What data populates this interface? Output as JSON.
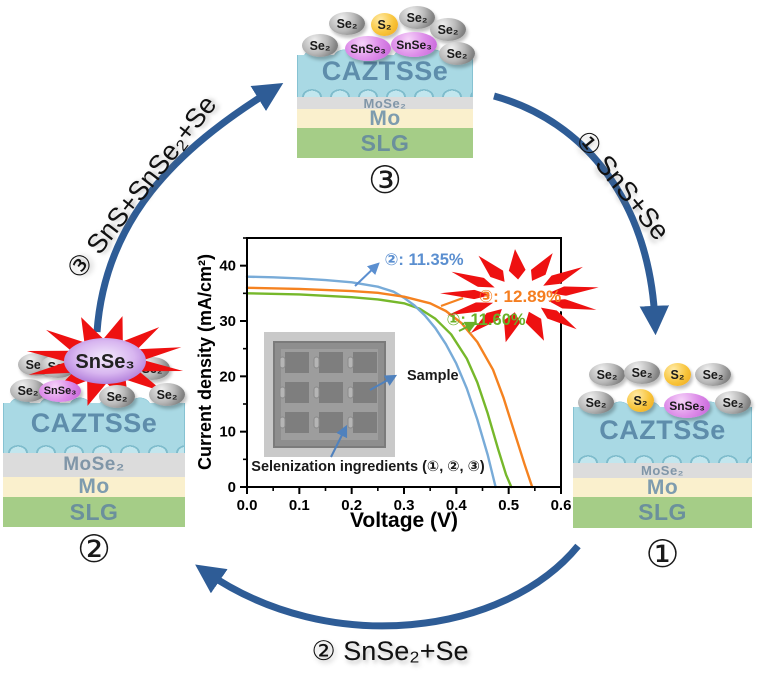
{
  "palette": {
    "cycle_arrow": "#2e5c96",
    "burst_red": "#ee1111",
    "absorber_blue": "#a9d9e4",
    "mo_cream": "#faf0cd",
    "slg_green": "#a5cd87",
    "curve_blue": "#78abd8",
    "curve_green": "#76b82b",
    "curve_orange": "#f58220",
    "annotation_arrow_blue": "#4f81bd"
  },
  "arrows": {
    "step1_label": "① SnS+Se",
    "step2_label": "② SnSe₂+Se",
    "step3_label": "③ SnS+SnSe₂+Se"
  },
  "stacks": {
    "top": {
      "number": "③",
      "layers": {
        "absorber": "CAZTSSe",
        "interface": "MoSe₂",
        "electrode": "Mo",
        "substrate": "SLG"
      },
      "particles": [
        {
          "type": "se",
          "label": "Se₂"
        },
        {
          "type": "s",
          "label": "S₂"
        },
        {
          "type": "se",
          "label": "Se₂"
        },
        {
          "type": "se",
          "label": "Se₂"
        },
        {
          "type": "se",
          "label": "Se₂"
        },
        {
          "type": "snse",
          "label": "SnSe₃"
        },
        {
          "type": "snse",
          "label": "SnSe₃"
        },
        {
          "type": "se",
          "label": "Se₂"
        }
      ]
    },
    "right": {
      "number": "①",
      "layers": {
        "absorber": "CAZTSSe",
        "interface": "MoSe₂",
        "electrode": "Mo",
        "substrate": "SLG"
      },
      "particles": [
        {
          "type": "se",
          "label": "Se₂"
        },
        {
          "type": "se",
          "label": "Se₂"
        },
        {
          "type": "s",
          "label": "S₂"
        },
        {
          "type": "se",
          "label": "Se₂"
        },
        {
          "type": "se",
          "label": "Se₂"
        },
        {
          "type": "s",
          "label": "S₂"
        },
        {
          "type": "snse",
          "label": "SnSe₃"
        },
        {
          "type": "se",
          "label": "Se₂"
        }
      ]
    },
    "left": {
      "number": "②",
      "burst_label": "SnSe₃",
      "layers": {
        "absorber": "CAZTSSe",
        "interface": "MoSe₂",
        "electrode": "Mo",
        "substrate": "SLG"
      },
      "particles": [
        {
          "type": "se",
          "label": "Se₂"
        },
        {
          "type": "se",
          "label": "Se₂"
        },
        {
          "type": "se",
          "label": "Se₂"
        },
        {
          "type": "se",
          "label": "Se₂"
        },
        {
          "type": "snse",
          "label": "SnSe₃"
        },
        {
          "type": "se",
          "label": "Se₂"
        },
        {
          "type": "se",
          "label": "Se₂"
        }
      ]
    }
  },
  "chart_data": {
    "type": "line",
    "title": "",
    "xlabel": "Voltage (V)",
    "ylabel": "Current density (mA/cm²)",
    "xlim": [
      0,
      0.6
    ],
    "ylim": [
      0,
      45
    ],
    "x_ticks": [
      "0.0",
      "0.1",
      "0.2",
      "0.3",
      "0.4",
      "0.5",
      "0.6"
    ],
    "y_ticks": [
      "0",
      "10",
      "20",
      "30",
      "40"
    ],
    "grid": false,
    "legend_position": "inline-annotations",
    "series": [
      {
        "id": "①",
        "annotation": "①: 11.60%",
        "efficiency_percent": 11.6,
        "color": "#76b82b",
        "points": [
          [
            0,
            35
          ],
          [
            0.1,
            34.8
          ],
          [
            0.2,
            34.3
          ],
          [
            0.25,
            33.9
          ],
          [
            0.3,
            33.2
          ],
          [
            0.33,
            32.2
          ],
          [
            0.36,
            30.4
          ],
          [
            0.39,
            27.6
          ],
          [
            0.42,
            23.2
          ],
          [
            0.44,
            18.9
          ],
          [
            0.46,
            13.3
          ],
          [
            0.48,
            6.8
          ],
          [
            0.495,
            2.2
          ],
          [
            0.505,
            0
          ]
        ]
      },
      {
        "id": "②",
        "annotation": "②: 11.35%",
        "efficiency_percent": 11.35,
        "color": "#78abd8",
        "points": [
          [
            0,
            38
          ],
          [
            0.05,
            37.9
          ],
          [
            0.1,
            37.7
          ],
          [
            0.15,
            37.4
          ],
          [
            0.2,
            37
          ],
          [
            0.25,
            36.2
          ],
          [
            0.28,
            35.3
          ],
          [
            0.3,
            34.2
          ],
          [
            0.32,
            32.8
          ],
          [
            0.34,
            31
          ],
          [
            0.36,
            28.7
          ],
          [
            0.38,
            25.8
          ],
          [
            0.4,
            22.3
          ],
          [
            0.42,
            17.8
          ],
          [
            0.44,
            12.2
          ],
          [
            0.46,
            5.8
          ],
          [
            0.475,
            0
          ]
        ]
      },
      {
        "id": "③",
        "annotation": "③: 12.89%",
        "efficiency_percent": 12.89,
        "color": "#f58220",
        "points": [
          [
            0,
            36
          ],
          [
            0.1,
            35.8
          ],
          [
            0.2,
            35.4
          ],
          [
            0.25,
            35.1
          ],
          [
            0.3,
            34.4
          ],
          [
            0.35,
            33.2
          ],
          [
            0.38,
            31.8
          ],
          [
            0.41,
            29.6
          ],
          [
            0.44,
            26.2
          ],
          [
            0.47,
            21.2
          ],
          [
            0.49,
            16.2
          ],
          [
            0.51,
            10.2
          ],
          [
            0.53,
            4.2
          ],
          [
            0.545,
            0
          ]
        ]
      }
    ],
    "inset": {
      "label_sample": "Sample",
      "label_ingredients": "Selenization ingredients (①, ②, ③)"
    }
  }
}
